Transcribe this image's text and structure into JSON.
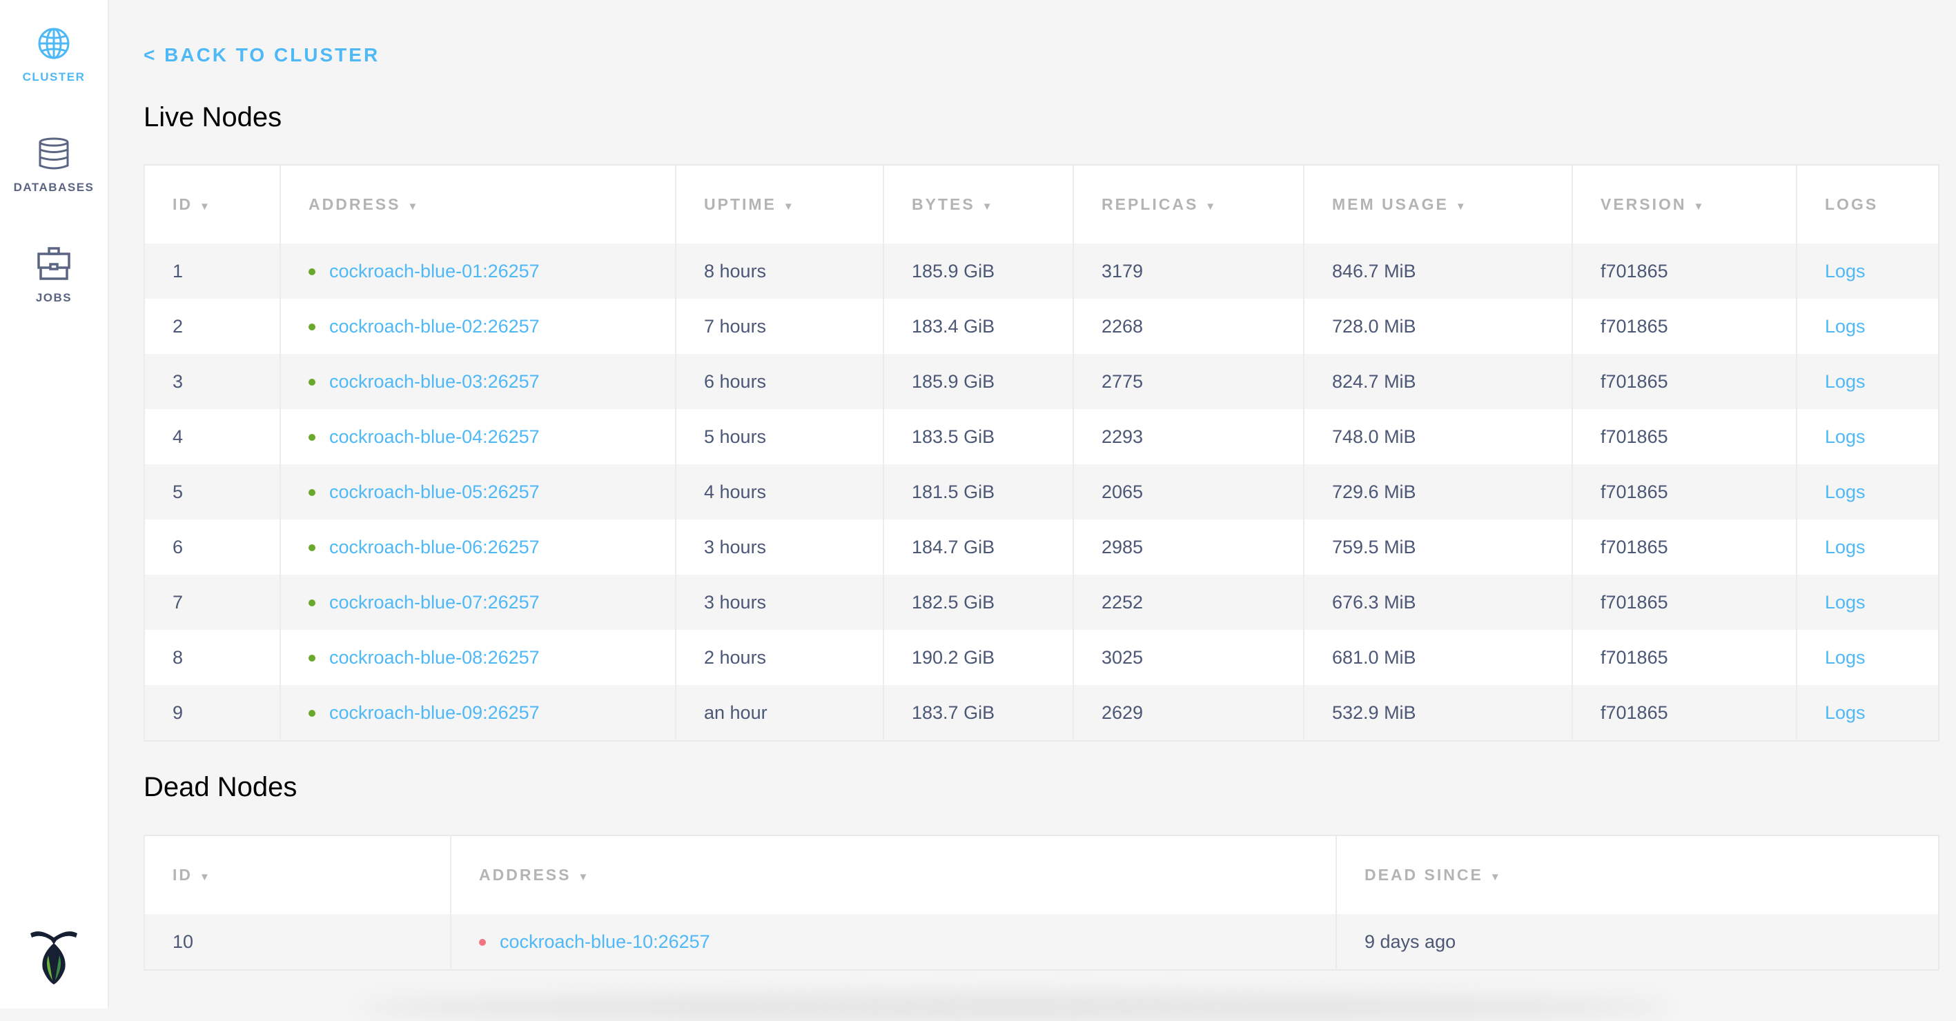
{
  "sidebar": {
    "items": [
      {
        "label": "CLUSTER",
        "icon": "globe-icon",
        "active": true
      },
      {
        "label": "DATABASES",
        "icon": "database-icon",
        "active": false
      },
      {
        "label": "JOBS",
        "icon": "briefcase-icon",
        "active": false
      }
    ],
    "logo": "cockroachdb-logo"
  },
  "back_link": "< BACK TO CLUSTER",
  "live": {
    "title": "Live Nodes",
    "columns": [
      "ID",
      "ADDRESS",
      "UPTIME",
      "BYTES",
      "REPLICAS",
      "MEM USAGE",
      "VERSION",
      "LOGS"
    ],
    "sortable": [
      true,
      true,
      true,
      true,
      true,
      true,
      true,
      false
    ],
    "rows": [
      {
        "id": "1",
        "address": "cockroach-blue-01:26257",
        "uptime": "8 hours",
        "bytes": "185.9 GiB",
        "replicas": "3179",
        "mem": "846.7 MiB",
        "version": "f701865",
        "logs": "Logs"
      },
      {
        "id": "2",
        "address": "cockroach-blue-02:26257",
        "uptime": "7 hours",
        "bytes": "183.4 GiB",
        "replicas": "2268",
        "mem": "728.0 MiB",
        "version": "f701865",
        "logs": "Logs"
      },
      {
        "id": "3",
        "address": "cockroach-blue-03:26257",
        "uptime": "6 hours",
        "bytes": "185.9 GiB",
        "replicas": "2775",
        "mem": "824.7 MiB",
        "version": "f701865",
        "logs": "Logs"
      },
      {
        "id": "4",
        "address": "cockroach-blue-04:26257",
        "uptime": "5 hours",
        "bytes": "183.5 GiB",
        "replicas": "2293",
        "mem": "748.0 MiB",
        "version": "f701865",
        "logs": "Logs"
      },
      {
        "id": "5",
        "address": "cockroach-blue-05:26257",
        "uptime": "4 hours",
        "bytes": "181.5 GiB",
        "replicas": "2065",
        "mem": "729.6 MiB",
        "version": "f701865",
        "logs": "Logs"
      },
      {
        "id": "6",
        "address": "cockroach-blue-06:26257",
        "uptime": "3 hours",
        "bytes": "184.7 GiB",
        "replicas": "2985",
        "mem": "759.5 MiB",
        "version": "f701865",
        "logs": "Logs"
      },
      {
        "id": "7",
        "address": "cockroach-blue-07:26257",
        "uptime": "3 hours",
        "bytes": "182.5 GiB",
        "replicas": "2252",
        "mem": "676.3 MiB",
        "version": "f701865",
        "logs": "Logs"
      },
      {
        "id": "8",
        "address": "cockroach-blue-08:26257",
        "uptime": "2 hours",
        "bytes": "190.2 GiB",
        "replicas": "3025",
        "mem": "681.0 MiB",
        "version": "f701865",
        "logs": "Logs"
      },
      {
        "id": "9",
        "address": "cockroach-blue-09:26257",
        "uptime": "an hour",
        "bytes": "183.7 GiB",
        "replicas": "2629",
        "mem": "532.9 MiB",
        "version": "f701865",
        "logs": "Logs"
      }
    ]
  },
  "dead": {
    "title": "Dead Nodes",
    "columns": [
      "ID",
      "ADDRESS",
      "DEAD SINCE"
    ],
    "rows": [
      {
        "id": "10",
        "address": "cockroach-blue-10:26257",
        "dead_since": "9 days ago"
      }
    ]
  },
  "colors": {
    "accent": "#4fb8f7",
    "live_dot": "#6aa82c",
    "dead_dot": "#f07583",
    "text": "#4c5776",
    "header": "#b4b4b4"
  }
}
